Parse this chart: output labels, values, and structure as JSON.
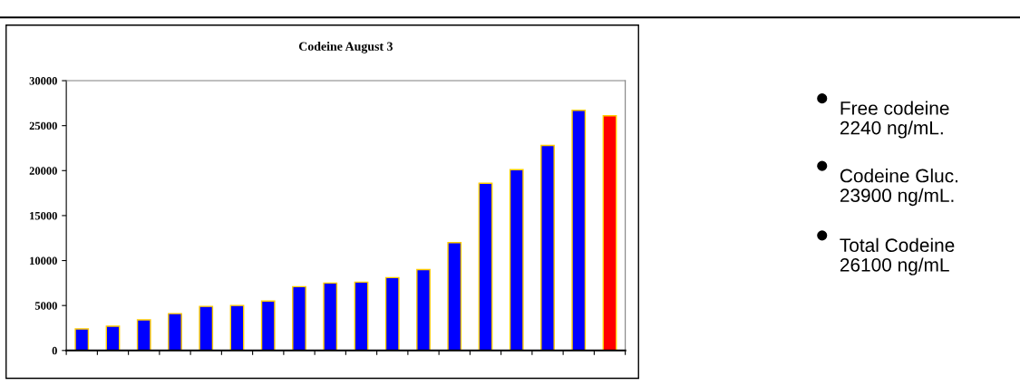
{
  "chart_data": {
    "type": "bar",
    "title": "Codeine August 3",
    "categories": [
      null,
      null,
      null,
      null,
      null,
      null,
      null,
      null,
      null,
      null,
      null,
      null,
      null,
      null,
      null,
      null,
      null,
      null
    ],
    "values": [
      2400,
      2700,
      3400,
      4100,
      4900,
      5000,
      5500,
      7100,
      7500,
      7600,
      8100,
      9000,
      12000,
      18600,
      20100,
      22800,
      26700,
      26100
    ],
    "colors": [
      "#0000ff",
      "#0000ff",
      "#0000ff",
      "#0000ff",
      "#0000ff",
      "#0000ff",
      "#0000ff",
      "#0000ff",
      "#0000ff",
      "#0000ff",
      "#0000ff",
      "#0000ff",
      "#0000ff",
      "#0000ff",
      "#0000ff",
      "#0000ff",
      "#0000ff",
      "#ff0000"
    ],
    "ylim": [
      0,
      30000
    ],
    "yticks": [
      0,
      5000,
      10000,
      15000,
      20000,
      25000,
      30000
    ],
    "grid": false,
    "annotations": [
      "Free codeine\n2240 ng/mL.",
      "Codeine Gluc.\n23900 ng/mL.",
      "Total Codeine\n26100 ng/mL"
    ]
  }
}
